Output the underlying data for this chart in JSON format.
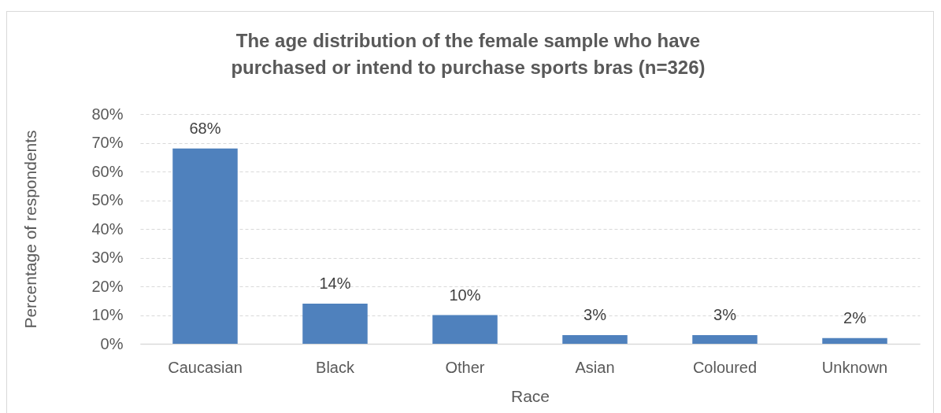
{
  "chart_data": {
    "type": "bar",
    "title": "The age distribution of the female sample who have purchased or intend to purchase sports bras (n=326)",
    "xlabel": "Race",
    "ylabel": "Percentage of respondents",
    "categories": [
      "Caucasian",
      "Black",
      "Other",
      "Asian",
      "Coloured",
      "Unknown"
    ],
    "values": [
      68,
      14,
      10,
      3,
      3,
      2
    ],
    "value_labels": [
      "68%",
      "14%",
      "10%",
      "3%",
      "3%",
      "2%"
    ],
    "color": "#4f81bd",
    "ylim": [
      0,
      80
    ],
    "yticks": [
      {
        "value": 0,
        "label": "0%"
      },
      {
        "value": 10,
        "label": "10%"
      },
      {
        "value": 20,
        "label": "20%"
      },
      {
        "value": 30,
        "label": "30%"
      },
      {
        "value": 40,
        "label": "40%"
      },
      {
        "value": 50,
        "label": "50%"
      },
      {
        "value": 60,
        "label": "60%"
      },
      {
        "value": 70,
        "label": "70%"
      },
      {
        "value": 80,
        "label": "80%"
      }
    ],
    "grid": "y"
  }
}
